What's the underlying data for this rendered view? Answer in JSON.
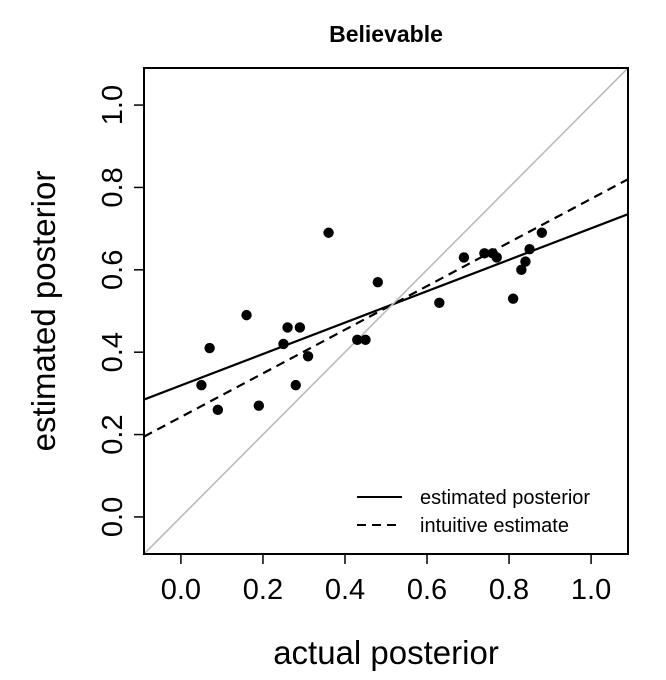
{
  "chart_data": {
    "type": "scatter",
    "title": "Believable",
    "xlabel": "actual posterior",
    "ylabel": "estimated posterior",
    "xlim": [
      -0.09,
      1.09
    ],
    "ylim": [
      -0.09,
      1.09
    ],
    "xticks": [
      "0.0",
      "0.2",
      "0.4",
      "0.6",
      "0.8",
      "1.0"
    ],
    "yticks": [
      "0.0",
      "0.2",
      "0.4",
      "0.6",
      "0.8",
      "1.0"
    ],
    "grid": false,
    "legend_position": "bottom-right",
    "points": [
      {
        "x": 0.05,
        "y": 0.32
      },
      {
        "x": 0.07,
        "y": 0.41
      },
      {
        "x": 0.09,
        "y": 0.26
      },
      {
        "x": 0.16,
        "y": 0.49
      },
      {
        "x": 0.19,
        "y": 0.27
      },
      {
        "x": 0.25,
        "y": 0.42
      },
      {
        "x": 0.26,
        "y": 0.46
      },
      {
        "x": 0.28,
        "y": 0.32
      },
      {
        "x": 0.29,
        "y": 0.46
      },
      {
        "x": 0.31,
        "y": 0.39
      },
      {
        "x": 0.36,
        "y": 0.69
      },
      {
        "x": 0.43,
        "y": 0.43
      },
      {
        "x": 0.45,
        "y": 0.43
      },
      {
        "x": 0.48,
        "y": 0.57
      },
      {
        "x": 0.63,
        "y": 0.52
      },
      {
        "x": 0.69,
        "y": 0.63
      },
      {
        "x": 0.74,
        "y": 0.64
      },
      {
        "x": 0.76,
        "y": 0.64
      },
      {
        "x": 0.77,
        "y": 0.63
      },
      {
        "x": 0.81,
        "y": 0.53
      },
      {
        "x": 0.83,
        "y": 0.6
      },
      {
        "x": 0.84,
        "y": 0.62
      },
      {
        "x": 0.85,
        "y": 0.65
      },
      {
        "x": 0.88,
        "y": 0.69
      }
    ],
    "lines": [
      {
        "label": "estimated posterior",
        "style": "solid",
        "color": "#000000",
        "x": [
          -0.09,
          1.09
        ],
        "y": [
          0.285,
          0.735
        ]
      },
      {
        "label": "intuitive estimate",
        "style": "dashed",
        "color": "#000000",
        "x": [
          -0.09,
          1.09
        ],
        "y": [
          0.195,
          0.82
        ]
      },
      {
        "label": "",
        "style": "solid",
        "color": "#bbbbbb",
        "x": [
          -0.09,
          1.09
        ],
        "y": [
          -0.09,
          1.09
        ]
      }
    ],
    "legend": [
      "estimated posterior",
      "intuitive estimate"
    ]
  }
}
